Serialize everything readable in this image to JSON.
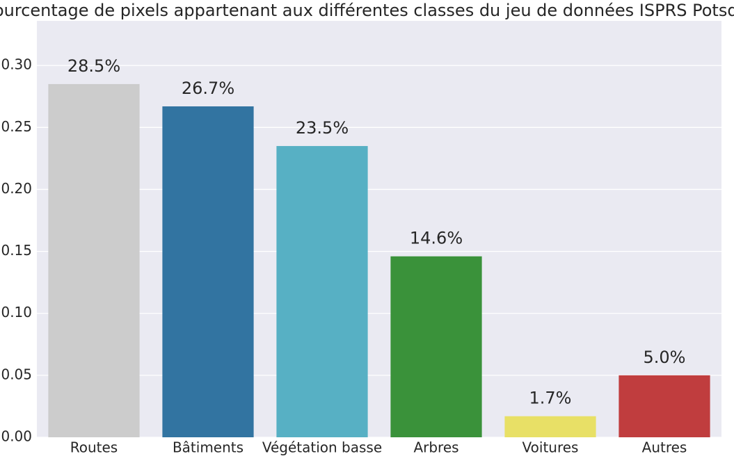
{
  "chart_data": {
    "type": "bar",
    "title": "Pourcentage de pixels appartenant aux différentes classes du jeu de données ISPRS Potsdam",
    "categories": [
      "Routes",
      "Bâtiments",
      "Végétation basse",
      "Arbres",
      "Voitures",
      "Autres"
    ],
    "values": [
      0.285,
      0.267,
      0.235,
      0.146,
      0.017,
      0.05
    ],
    "value_labels": [
      "28.5%",
      "26.7%",
      "23.5%",
      "14.6%",
      "1.7%",
      "5.0%"
    ],
    "colors": [
      "#cccccc",
      "#3274a1",
      "#57b0c4",
      "#3a923a",
      "#e8e066",
      "#c03d3e"
    ],
    "ylim": [
      0,
      0.336
    ],
    "yticks": [
      {
        "value": 0,
        "label": "0.00"
      },
      {
        "value": 0.05,
        "label": "0.05"
      },
      {
        "value": 0.1,
        "label": "0.10"
      },
      {
        "value": 0.15,
        "label": "0.15"
      },
      {
        "value": 0.2,
        "label": "0.20"
      },
      {
        "value": 0.25,
        "label": "0.25"
      },
      {
        "value": 0.3,
        "label": "0.30"
      }
    ],
    "grid": true
  }
}
